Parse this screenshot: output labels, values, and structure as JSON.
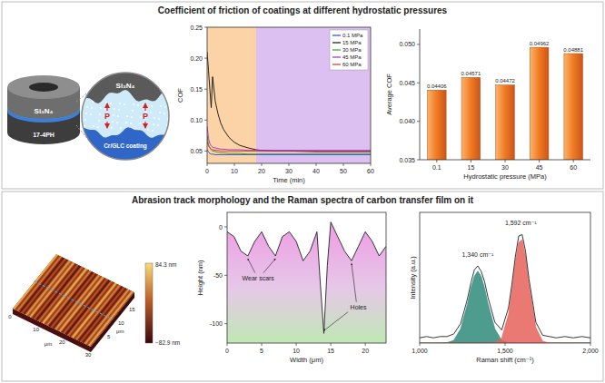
{
  "header": {
    "top_title": "Coefficient of friction of coatings at different hydrostatic pressures",
    "bottom_title": "Abrasion track morphology and the Raman spectra of carbon transfer film on it"
  },
  "schematic": {
    "ring_top": "Si₃N₄",
    "ring_bottom": "17-4PH",
    "zoom_top": "Si₃N₄",
    "pressure": "P",
    "coating": "Cr/GLC coating"
  },
  "afm": {
    "xlim": [
      0,
      30
    ],
    "ylim": [
      0,
      20
    ],
    "xticks": [
      0,
      10,
      20,
      30
    ],
    "yticks": [
      5,
      10,
      15
    ],
    "unit": "μm",
    "colorbar_max": "84.3 nm",
    "colorbar_min": "−82.9 nm"
  },
  "chart_data": [
    {
      "type": "line",
      "xlabel": "Time (min)",
      "ylabel": "COF",
      "legend": "upper right",
      "x": [
        0,
        0.5,
        1,
        1.5,
        2,
        3,
        4,
        5,
        6,
        8,
        10,
        12,
        15,
        18,
        20,
        25,
        30,
        40,
        50,
        60
      ],
      "xlim": [
        0,
        60
      ],
      "xticks": [
        0,
        10,
        20,
        30,
        40,
        50,
        60
      ],
      "ylim": [
        0.03,
        0.25
      ],
      "yticks": [
        0.05,
        {
          "value": 0.1,
          "label": "0.10"
        },
        0.15,
        {
          "value": 0.2,
          "label": "0.20"
        },
        0.25
      ],
      "bands": [
        [
          0,
          18
        ],
        [
          18,
          60
        ]
      ],
      "series": [
        {
          "name": "0.1 MPa",
          "color": "#1f4fd6",
          "values": [
            0.052,
            0.048,
            0.046,
            0.045,
            0.045,
            0.044,
            0.044,
            0.044,
            0.044,
            0.044,
            0.044,
            0.044,
            0.044,
            0.044,
            0.044,
            0.044,
            0.044,
            0.044,
            0.044,
            0.044
          ]
        },
        {
          "name": "15 MPa",
          "color": "#111111",
          "values": [
            0.21,
            0.18,
            0.15,
            0.12,
            0.17,
            0.13,
            0.11,
            0.095,
            0.085,
            0.072,
            0.064,
            0.059,
            0.055,
            0.052,
            0.051,
            0.05,
            0.05,
            0.049,
            0.049,
            0.049
          ]
        },
        {
          "name": "30 MPa",
          "color": "#2ca02c",
          "values": [
            0.075,
            0.06,
            0.055,
            0.052,
            0.05,
            0.049,
            0.048,
            0.047,
            0.047,
            0.046,
            0.046,
            0.046,
            0.045,
            0.045,
            0.045,
            0.045,
            0.045,
            0.045,
            0.045,
            0.045
          ]
        },
        {
          "name": "45 MPa",
          "color": "#9b30c8",
          "values": [
            0.09,
            0.07,
            0.062,
            0.058,
            0.056,
            0.055,
            0.054,
            0.053,
            0.053,
            0.052,
            0.052,
            0.052,
            0.051,
            0.051,
            0.051,
            0.051,
            0.051,
            0.051,
            0.051,
            0.051
          ]
        },
        {
          "name": "60 MPa",
          "color": "#e0302a",
          "values": [
            0.065,
            0.058,
            0.055,
            0.053,
            0.052,
            0.051,
            0.051,
            0.05,
            0.05,
            0.05,
            0.05,
            0.05,
            0.05,
            0.05,
            0.05,
            0.05,
            0.05,
            0.05,
            0.05,
            0.05
          ]
        }
      ]
    },
    {
      "type": "bar",
      "xlabel": "Hydrostatic pressure (MPa)",
      "ylabel": "Average COF",
      "color": "#f07a22",
      "data_labels": true,
      "categories": [
        "0.1",
        "15",
        "30",
        "45",
        "60"
      ],
      "values": [
        0.04406,
        0.04571,
        0.04472,
        0.04962,
        0.04881
      ],
      "ylim": [
        0.035,
        0.052
      ],
      "yticks": [
        0.035,
        {
          "value": 0.04,
          "label": "0.040"
        },
        0.045,
        {
          "value": 0.05,
          "label": "0.050"
        }
      ]
    },
    {
      "type": "area",
      "xlabel": "Width (μm)",
      "ylabel": "Height (nm)",
      "color": "#222222",
      "x": [
        0,
        1,
        2,
        3,
        4,
        5,
        6,
        7,
        8,
        9,
        10,
        11,
        12,
        13,
        13.5,
        14,
        14.5,
        15,
        16,
        17,
        18,
        19,
        20,
        21,
        22,
        23
      ],
      "values": [
        -5,
        -10,
        -25,
        -30,
        -15,
        -5,
        -20,
        -30,
        -10,
        -5,
        -15,
        -35,
        -25,
        -5,
        -60,
        -110,
        -40,
        5,
        -10,
        -25,
        -35,
        -20,
        -5,
        -15,
        -30,
        -20
      ],
      "xlim": [
        0,
        23
      ],
      "xticks": [
        0,
        5,
        10,
        15,
        20
      ],
      "ylim": [
        -120,
        15
      ],
      "yticks": [
        -100,
        -50,
        0
      ],
      "annotations": [
        {
          "text": "Wear scars",
          "x": 4.5,
          "y": -55
        },
        {
          "text": "Holes",
          "x": 19,
          "y": -85
        }
      ]
    },
    {
      "type": "line",
      "xlabel": "Raman shift (cm⁻¹)",
      "ylabel": "Intensity (a.u.)",
      "tick_labels": "x",
      "x": [
        1000,
        1040,
        1080,
        1120,
        1160,
        1200,
        1240,
        1280,
        1300,
        1320,
        1340,
        1360,
        1380,
        1400,
        1440,
        1480,
        1520,
        1540,
        1560,
        1580,
        1600,
        1620,
        1640,
        1680,
        1720,
        1760,
        1800,
        1850,
        1900,
        1950,
        2000
      ],
      "xlim": [
        1000,
        2000
      ],
      "xticks": [
        {
          "value": 1000,
          "label": "1,000"
        },
        {
          "value": 1500,
          "label": "1,500"
        },
        {
          "value": 2000,
          "label": "2,000"
        }
      ],
      "ylim": [
        0,
        1
      ],
      "series": [
        {
          "type": "area",
          "color": "#2e8b7a",
          "values": [
            0,
            0,
            0,
            0,
            0.003,
            0.02,
            0.11,
            0.3,
            0.42,
            0.51,
            0.55,
            0.51,
            0.42,
            0.3,
            0.11,
            0.02,
            0.003,
            0,
            0,
            0,
            0,
            0,
            0,
            0,
            0,
            0,
            0,
            0,
            0,
            0,
            0
          ]
        },
        {
          "type": "area",
          "color": "#e8625a",
          "values": [
            0,
            0,
            0,
            0,
            0,
            0,
            0,
            0,
            0,
            0,
            0,
            0,
            0,
            0,
            0.003,
            0.036,
            0.22,
            0.41,
            0.62,
            0.77,
            0.79,
            0.66,
            0.45,
            0.12,
            0.014,
            0,
            0,
            0,
            0,
            0,
            0
          ]
        },
        {
          "type": "line",
          "color": "#222222",
          "values": [
            0.04,
            0.05,
            0.04,
            0.05,
            0.05,
            0.07,
            0.15,
            0.34,
            0.46,
            0.56,
            0.59,
            0.55,
            0.47,
            0.35,
            0.16,
            0.1,
            0.27,
            0.45,
            0.66,
            0.82,
            0.83,
            0.7,
            0.49,
            0.16,
            0.06,
            0.05,
            0.04,
            0.05,
            0.04,
            0.05,
            0.04
          ]
        }
      ],
      "annotations": [
        {
          "text": "1,340 cm⁻¹",
          "x": 1340,
          "y": 0.66
        },
        {
          "text": "1,592 cm⁻¹",
          "x": 1592,
          "y": 0.9
        }
      ]
    }
  ]
}
